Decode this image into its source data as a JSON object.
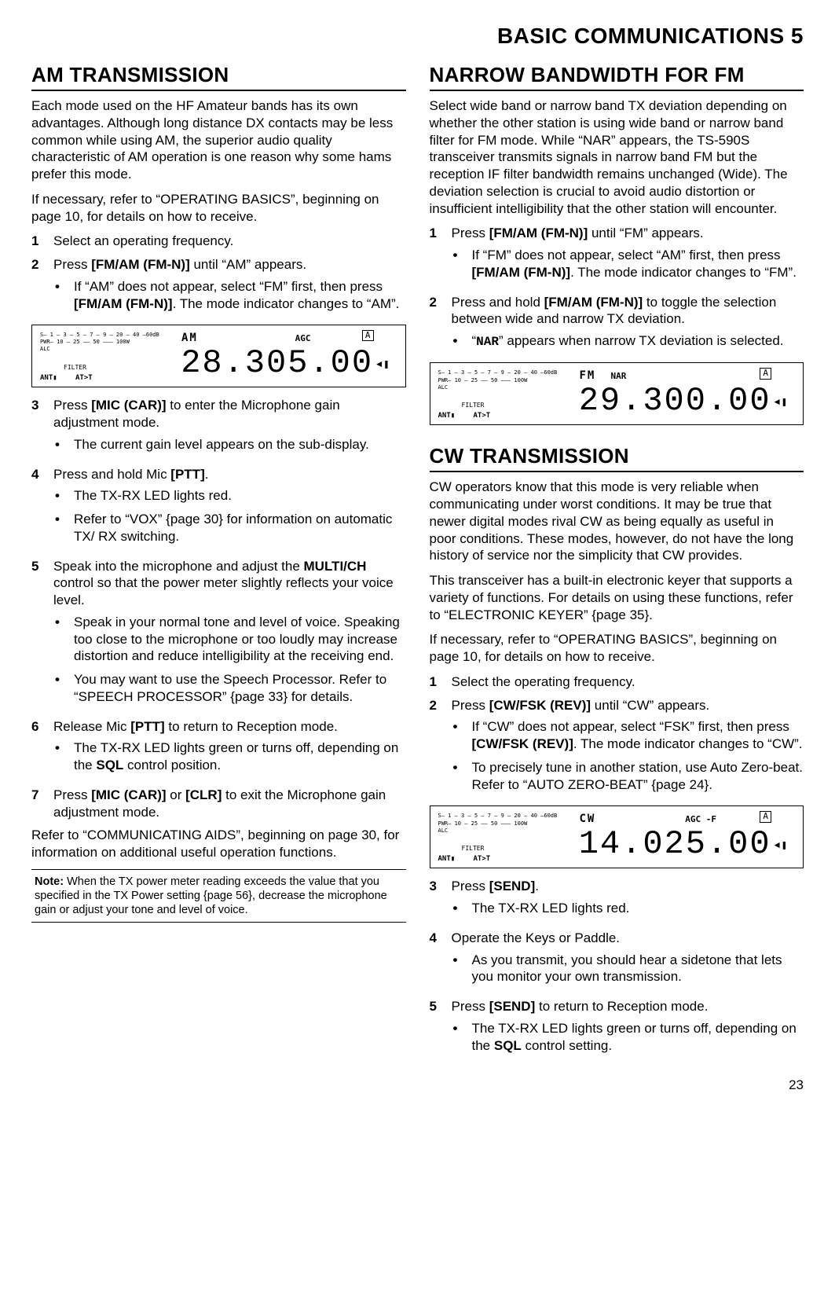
{
  "header": "BASIC COMMUNICATIONS  5",
  "page_number": "23",
  "left": {
    "am": {
      "title": "AM TRANSMISSION",
      "intro1": "Each mode used on the HF Amateur bands has its own advantages.  Although long distance DX contacts may be less common while using AM, the superior audio quality characteristic of AM operation is one reason why some hams prefer this mode.",
      "intro2a": "If necessary, refer to “OPERATING BASICS”, beginning on page 10, for details on how to receive.",
      "s1": "Select an operating frequency.",
      "s2a": "Press ",
      "s2b": "[FM/AM (FM-N)]",
      "s2c": " until “AM” appears.",
      "s2b_a": "If “AM” does not appear, select “FM” first, then press ",
      "s2b_b": "[FM/AM (FM-N)]",
      "s2b_c": ".  The mode indicator changes to “AM”.",
      "disp1": {
        "mode": "AM",
        "freq": "28.305.00",
        "agc": "AGC"
      },
      "s3a": "Press ",
      "s3b": "[MIC (CAR)]",
      "s3c": " to enter the Microphone gain adjustment mode.",
      "s3bul": "The current gain level appears on the sub-display.",
      "s4a": "Press and hold Mic ",
      "s4b": "[PTT]",
      "s4c": ".",
      "s4b1": "The TX-RX LED lights red.",
      "s4b2": "Refer to “VOX” {page 30} for information on automatic TX/ RX switching.",
      "s5a": "Speak into the microphone and adjust the ",
      "s5b": "MULTI/CH",
      "s5c": " control so that the power meter slightly reflects your voice level.",
      "s5b1": "Speak in your normal tone and level of voice.  Speaking too close to the microphone or too loudly may increase distortion and reduce intelligibility at the receiving end.",
      "s5b2": "You may want to use the Speech Processor.  Refer to “SPEECH PROCESSOR” {page 33} for details.",
      "s6a": "Release Mic ",
      "s6b": "[PTT]",
      "s6c": " to return to Reception mode.",
      "s6b1a": "The TX-RX LED lights green or turns off, depending on the ",
      "s6b1b": "SQL",
      "s6b1c": " control position.",
      "s7a": "Press ",
      "s7b": "[MIC (CAR)]",
      "s7c": " or ",
      "s7d": "[CLR]",
      "s7e": " to exit the Microphone gain adjustment mode.",
      "outro": "Refer to “COMMUNICATING AIDS”, beginning on page 30, for information on additional useful operation functions.",
      "note_label": "Note:",
      "note": "  When the TX power meter reading exceeds the value that you specified in the TX Power setting {page 56}, decrease the microphone gain or adjust your tone and level of voice."
    }
  },
  "right": {
    "nar": {
      "title": "NARROW BANDWIDTH FOR FM",
      "intro": "Select wide band or narrow band TX deviation depending on whether the other station is using wide band or narrow band filter for FM mode.  While “NAR” appears, the TS-590S transceiver transmits signals in narrow band FM but the reception IF filter bandwidth remains unchanged (Wide).  The deviation selection is crucial to avoid audio distortion or insufficient intelligibility that the other station will encounter.",
      "s1a": "Press ",
      "s1b": "[FM/AM (FM-N)]",
      "s1c": " until “FM” appears.",
      "s1b_a": "If “FM” does not appear, select “AM” first, then press ",
      "s1b_b": "[FM/AM (FM-N)]",
      "s1b_c": ".  The mode indicator changes to “FM”.",
      "s2a": "Press and hold ",
      "s2b": "[FM/AM (FM-N)]",
      "s2c": " to toggle the selection between wide and narrow TX deviation.",
      "s2b1a": "“",
      "s2b1b": "NAR",
      "s2b1c": "” appears when narrow TX deviation is selected.",
      "disp": {
        "mode": "FM",
        "nar": "NAR",
        "freq": "29.300.00"
      }
    },
    "cw": {
      "title": "CW TRANSMISSION",
      "intro1": "CW operators know that this mode is very reliable when communicating under worst conditions.  It may be true that newer digital modes rival CW as being equally as useful in poor conditions.  These modes, however, do not have the long history of service nor the simplicity that CW provides.",
      "intro2": "This transceiver has a built-in electronic keyer that supports a variety of functions.  For details on using these functions, refer to “ELECTRONIC KEYER” {page 35}.",
      "intro3": "If necessary, refer to “OPERATING BASICS”, beginning on page 10, for details on how to receive.",
      "s1": "Select the operating frequency.",
      "s2a": "Press ",
      "s2b": "[CW/FSK (REV)]",
      "s2c": " until “CW” appears.",
      "s2b1a": "If “CW” does not appear, select “FSK” first, then press ",
      "s2b1b": "[CW/FSK (REV)]",
      "s2b1c": ".  The mode indicator changes to “CW”.",
      "s2b2": "To precisely tune in another station, use Auto Zero-beat.  Refer to “AUTO ZERO-BEAT” {page 24}.",
      "disp": {
        "mode": "CW",
        "freq": "14.025.00",
        "agc": "AGC  -F"
      },
      "s3a": "Press ",
      "s3b": "[SEND]",
      "s3c": ".",
      "s3b1": "The TX-RX LED lights red.",
      "s4": "Operate the Keys or Paddle.",
      "s4b1": "As you transmit, you should hear a sidetone that lets you monitor your own transmission.",
      "s5a": "Press ",
      "s5b": "[SEND]",
      "s5c": " to return to Reception mode.",
      "s5b1a": "The TX-RX LED lights green or turns off, depending on the ",
      "s5b1b": "SQL",
      "s5b1c": " control setting."
    }
  }
}
